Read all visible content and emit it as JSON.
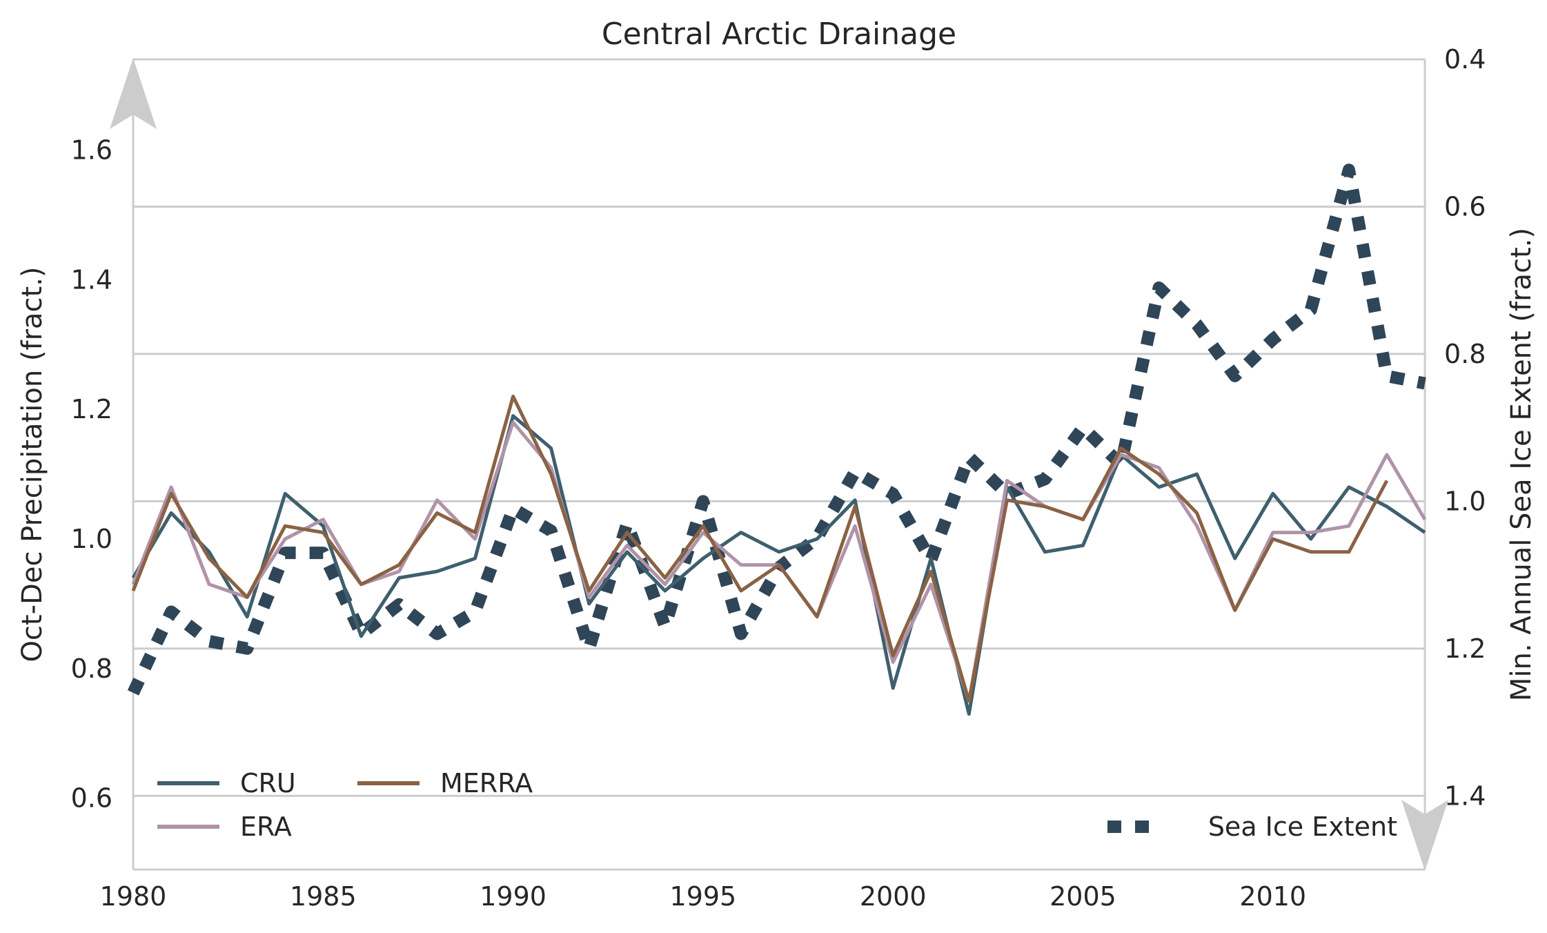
{
  "chart_data": {
    "type": "line",
    "title": "Central Arctic Drainage",
    "xlabel": "",
    "ylabel": "Oct-Dec Precipitation (fract.)",
    "y2label": "Min. Annual Sea Ice Extent (fract.)",
    "xlim": [
      1980,
      2014
    ],
    "ylim": [
      0.49,
      1.74
    ],
    "y2lim": [
      1.5,
      0.4
    ],
    "y2_inverted": true,
    "x_ticks": [
      1980,
      1985,
      1990,
      1995,
      2000,
      2005,
      2010
    ],
    "y_ticks": [
      "0.6",
      "0.8",
      "1.0",
      "1.2",
      "1.4",
      "1.6"
    ],
    "y_tick_values": [
      0.6,
      0.8,
      1.0,
      1.2,
      1.4,
      1.6
    ],
    "y2_ticks": [
      "0.4",
      "0.6",
      "0.8",
      "1.0",
      "1.2",
      "1.4"
    ],
    "y2_tick_values": [
      0.4,
      0.6,
      0.8,
      1.0,
      1.2,
      1.4
    ],
    "grid": true,
    "grid_axis": "right",
    "legend_placement": "bottom-left",
    "x": [
      1980,
      1981,
      1982,
      1983,
      1984,
      1985,
      1986,
      1987,
      1988,
      1989,
      1990,
      1991,
      1992,
      1993,
      1994,
      1995,
      1996,
      1997,
      1998,
      1999,
      2000,
      2001,
      2002,
      2003,
      2004,
      2005,
      2006,
      2007,
      2008,
      2009,
      2010,
      2011,
      2012,
      2013,
      2014
    ],
    "series": [
      {
        "name": "CRU",
        "axis": "left",
        "style": "solid",
        "color": "#3e5f6e",
        "values": [
          0.94,
          1.04,
          0.98,
          0.88,
          1.07,
          1.02,
          0.85,
          0.94,
          0.95,
          0.97,
          1.19,
          1.14,
          0.9,
          0.98,
          0.92,
          0.97,
          1.01,
          0.98,
          1.0,
          1.06,
          0.77,
          0.97,
          0.73,
          1.08,
          0.98,
          0.99,
          1.13,
          1.08,
          1.1,
          0.97,
          1.07,
          1.0,
          1.08,
          1.05,
          1.01
        ]
      },
      {
        "name": "ERA",
        "axis": "left",
        "style": "solid",
        "color": "#b093a8",
        "values": [
          0.93,
          1.08,
          0.93,
          0.91,
          1.0,
          1.03,
          0.93,
          0.95,
          1.06,
          1.0,
          1.18,
          1.11,
          0.91,
          0.99,
          0.93,
          1.01,
          0.96,
          0.96,
          0.88,
          1.02,
          0.81,
          0.93,
          0.75,
          1.09,
          1.05,
          1.03,
          1.13,
          1.11,
          1.02,
          0.89,
          1.01,
          1.01,
          1.02,
          1.13,
          1.03
        ]
      },
      {
        "name": "MERRA",
        "axis": "left",
        "style": "solid",
        "color": "#8a6244",
        "values": [
          0.92,
          1.07,
          0.97,
          0.91,
          1.02,
          1.01,
          0.93,
          0.96,
          1.04,
          1.01,
          1.22,
          1.1,
          0.92,
          1.01,
          0.94,
          1.02,
          0.92,
          0.96,
          0.88,
          1.05,
          0.82,
          0.95,
          0.75,
          1.06,
          1.05,
          1.03,
          1.14,
          1.1,
          1.04,
          0.89,
          1.0,
          0.98,
          0.98,
          1.09,
          null
        ]
      },
      {
        "name": "Sea Ice Extent",
        "axis": "right",
        "style": "dotted",
        "color": "#2f4558",
        "values": [
          1.26,
          1.15,
          1.19,
          1.2,
          1.07,
          1.07,
          1.18,
          1.14,
          1.18,
          1.15,
          1.01,
          1.04,
          1.2,
          1.03,
          1.17,
          1.0,
          1.18,
          1.09,
          1.05,
          0.96,
          0.99,
          1.08,
          0.94,
          0.99,
          0.97,
          0.9,
          0.95,
          0.71,
          0.76,
          0.83,
          0.78,
          0.74,
          0.55,
          0.83,
          0.84
        ]
      }
    ]
  }
}
